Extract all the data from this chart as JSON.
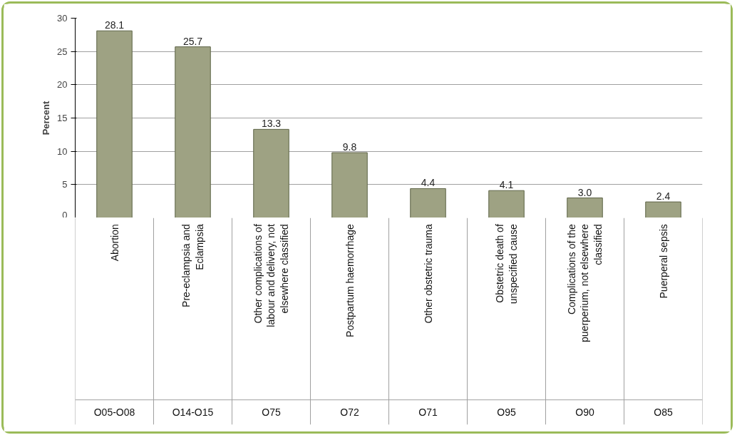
{
  "chart_data": {
    "type": "bar",
    "ylabel": "Percent",
    "categories": [
      "Abortion",
      "Pre-eclampsia and Eclampsia",
      "Other complications of labour and delivery, not elsewhere classified",
      "Postpartum haemorrhage",
      "Other obstetric trauma",
      "Obstetric death of unspecified cause",
      "Complications of the puerperium, not elsewhere classified",
      "Puerperal sepsis"
    ],
    "values": [
      28.1,
      25.7,
      13.3,
      9.8,
      4.4,
      4.1,
      3.0,
      2.4
    ],
    "value_labels": [
      "28.1",
      "25.7",
      "13.3",
      "9.8",
      "4.4",
      "4.1",
      "3.0",
      "2.4"
    ],
    "color": "#9ea283",
    "ylim": [
      0,
      30
    ],
    "yticks": [
      0,
      5,
      10,
      15,
      20,
      25,
      30
    ],
    "grid": "y",
    "annotations": [
      "O05-O08",
      "O14-O15",
      "O75",
      "O72",
      "O71",
      "O95",
      "O90",
      "O85"
    ]
  }
}
